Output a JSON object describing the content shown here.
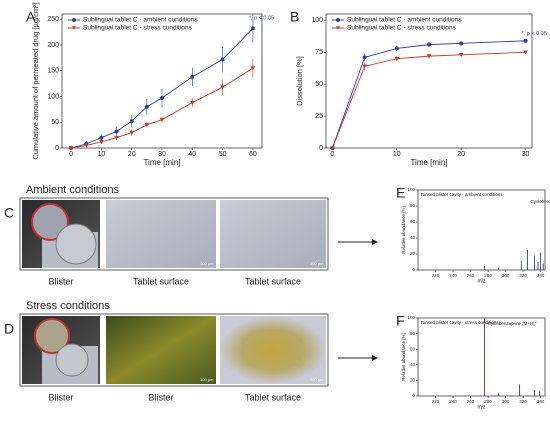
{
  "chart_data": [
    {
      "type": "line",
      "panel": "A",
      "xlabel": "Time [min]",
      "ylabel": "Cumulative amount of permeated drug [µg/cm²]",
      "x": [
        0,
        5,
        10,
        15,
        20,
        25,
        30,
        40,
        50,
        60
      ],
      "xlim": [
        -3,
        63
      ],
      "xticks": [
        0,
        10,
        20,
        30,
        40,
        50,
        60
      ],
      "ylim": [
        0,
        260
      ],
      "yticks": [
        0,
        50,
        100,
        150,
        200,
        250
      ],
      "legend": "upper left",
      "annotation": "*, p < 0.05",
      "series": [
        {
          "name": "Sublingual tablet C - ambient conditions",
          "color": "#2c3e9a",
          "marker": "circle",
          "values": [
            0,
            8,
            20,
            32,
            52,
            80,
            97,
            138,
            172,
            232
          ],
          "errors": [
            0,
            5,
            6,
            10,
            12,
            15,
            18,
            18,
            25,
            28
          ]
        },
        {
          "name": "Sublingual tablet C - stress conditions",
          "color": "#c0392b",
          "marker": "triangle",
          "values": [
            0,
            5,
            12,
            20,
            30,
            45,
            55,
            88,
            118,
            155
          ],
          "errors": [
            0,
            3,
            4,
            5,
            6,
            5,
            6,
            8,
            15,
            18
          ]
        }
      ]
    },
    {
      "type": "line",
      "panel": "B",
      "xlabel": "Time [min]",
      "ylabel": "Dissolution [%]",
      "x": [
        0,
        5,
        10,
        15,
        20,
        30
      ],
      "xlim": [
        -1,
        31
      ],
      "xticks": [
        0,
        10,
        20,
        30
      ],
      "ylim": [
        0,
        105
      ],
      "yticks": [
        0,
        25,
        50,
        75,
        100
      ],
      "legend": "upper left",
      "annotation": "*, p < 0.05",
      "series": [
        {
          "name": "Sublingual tablet C - ambient conditions",
          "color": "#2c3e9a",
          "marker": "circle",
          "values": [
            0,
            71,
            78,
            81,
            82,
            84
          ],
          "errors": [
            0,
            3,
            2,
            2,
            1,
            1
          ]
        },
        {
          "name": "Sublingual tablet C - stress conditions",
          "color": "#c0392b",
          "marker": "triangle",
          "values": [
            0,
            64,
            70,
            72,
            73,
            75
          ],
          "errors": [
            0,
            3,
            2,
            2,
            1,
            1
          ]
        }
      ]
    },
    {
      "type": "stem",
      "panel": "E",
      "xlabel": "m/z",
      "ylabel": "Relative abundance [%]",
      "color": "#2c3e9a",
      "label": "Rinsed blister cavity - ambient conditions",
      "peak_label": "Cyclobenzaprine [M+H]⁺",
      "x": [
        276,
        292,
        318,
        325,
        333,
        337,
        340,
        343
      ],
      "values": [
        5,
        3,
        12,
        25,
        18,
        10,
        22,
        8
      ],
      "xlim": [
        200,
        345
      ],
      "xticks": [
        220,
        240,
        260,
        280,
        300,
        320,
        340
      ],
      "ylim": [
        0,
        100
      ],
      "yticks": [
        0,
        20,
        40,
        60,
        80,
        100
      ]
    },
    {
      "type": "stem",
      "panel": "F",
      "xlabel": "m/z",
      "ylabel": "Relative abundance [%]",
      "color": "#8b1a1a",
      "label": "Rinsed blister cavity - stress conditions",
      "peak_label": "Cyclobenzaprine [M+H]⁺",
      "x": [
        276,
        292,
        316,
        333,
        339
      ],
      "values": [
        100,
        3,
        15,
        8,
        6
      ],
      "xlim": [
        200,
        345
      ],
      "xticks": [
        220,
        240,
        260,
        280,
        300,
        320,
        340
      ],
      "ylim": [
        0,
        100
      ],
      "yticks": [
        0,
        20,
        40,
        60,
        80,
        100
      ]
    }
  ],
  "photos": {
    "ambient": {
      "panel": "C",
      "title": "Ambient conditions",
      "captions": [
        "Blister",
        "Tablet surface",
        "Tablet surface"
      ],
      "scale_bars": [
        "100 µm",
        "200 µm"
      ]
    },
    "stress": {
      "panel": "D",
      "title": "Stress conditions",
      "captions": [
        "Blister",
        "Blister",
        "Tablet surface"
      ],
      "scale_bars": [
        "100 µm",
        "200 µm"
      ]
    }
  }
}
